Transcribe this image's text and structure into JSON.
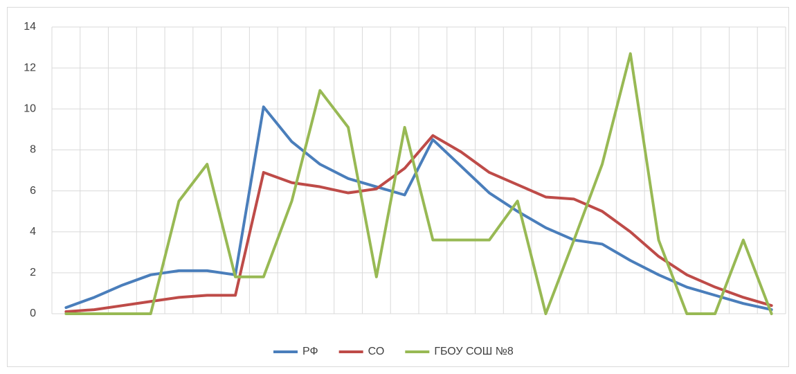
{
  "chart_data": {
    "type": "line",
    "categories": [
      null,
      null,
      null,
      null,
      null,
      null,
      null,
      null,
      null,
      null,
      null,
      null,
      null,
      null,
      null,
      null,
      null,
      null,
      null,
      null,
      null,
      null,
      null,
      null,
      null,
      null
    ],
    "series": [
      {
        "name": "РФ",
        "color": "#4a7ebb",
        "values": [
          0.3,
          0.8,
          1.4,
          1.9,
          2.1,
          2.1,
          1.9,
          10.1,
          8.4,
          7.3,
          6.6,
          6.2,
          5.8,
          8.5,
          7.2,
          5.9,
          5.0,
          4.2,
          3.6,
          3.4,
          2.6,
          1.9,
          1.3,
          0.9,
          0.5,
          0.2
        ]
      },
      {
        "name": "СО",
        "color": "#be4b48",
        "values": [
          0.1,
          0.2,
          0.4,
          0.6,
          0.8,
          0.9,
          0.9,
          6.9,
          6.4,
          6.2,
          5.9,
          6.1,
          7.1,
          8.7,
          7.9,
          6.9,
          6.3,
          5.7,
          5.6,
          5.0,
          4.0,
          2.8,
          1.9,
          1.3,
          0.8,
          0.4
        ]
      },
      {
        "name": "ГБОУ СОШ №8",
        "color": "#98b954",
        "values": [
          0,
          0,
          0,
          0,
          5.5,
          7.3,
          1.8,
          1.8,
          5.5,
          10.9,
          9.1,
          1.8,
          9.1,
          3.6,
          3.6,
          3.6,
          5.5,
          0,
          3.6,
          7.3,
          12.7,
          3.6,
          0,
          0,
          3.6,
          0
        ]
      }
    ],
    "ylim": [
      0,
      14
    ],
    "yticks": [
      0,
      2,
      4,
      6,
      8,
      10,
      12,
      14
    ],
    "grid": true,
    "legend": "bottom"
  }
}
